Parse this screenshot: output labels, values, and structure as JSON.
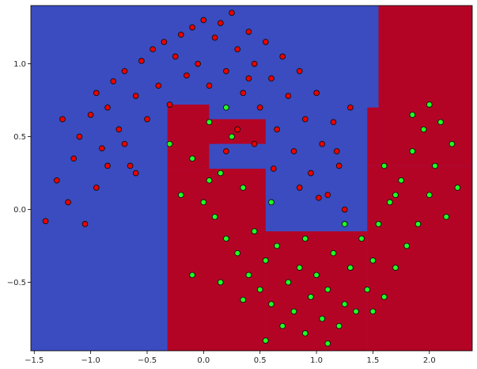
{
  "chart_data": {
    "type": "scatter",
    "title": "",
    "xlabel": "",
    "ylabel": "",
    "xlim": [
      -1.53,
      2.38
    ],
    "ylim": [
      -0.97,
      1.4
    ],
    "grid": false,
    "legend": "none",
    "x_ticks": [
      -1.5,
      -1.0,
      -0.5,
      0.0,
      0.5,
      1.0,
      1.5,
      2.0
    ],
    "x_tick_labels": [
      "−1.5",
      "−1.0",
      "−0.5",
      "0.0",
      "0.5",
      "1.0",
      "1.5",
      "2.0"
    ],
    "y_ticks": [
      -0.5,
      0.0,
      0.5,
      1.0
    ],
    "y_tick_labels": [
      "−0.5",
      "0.0",
      "0.5",
      "1.0"
    ],
    "background": "decision-surface",
    "colors": {
      "class_0_region": "#3b4cc0",
      "class_1_region": "#b40426",
      "class_0_points": "#ee0000",
      "class_1_points": "#22ff22"
    },
    "decision_regions": [
      {
        "class": 1,
        "x": [
          -0.32,
          0.55
        ],
        "y": [
          -0.97,
          0.28
        ]
      },
      {
        "class": 1,
        "x": [
          -0.32,
          0.05
        ],
        "y": [
          0.28,
          0.72
        ]
      },
      {
        "class": 1,
        "x": [
          0.05,
          0.55
        ],
        "y": [
          0.45,
          0.62
        ]
      },
      {
        "class": 1,
        "x": [
          0.55,
          1.45
        ],
        "y": [
          -0.97,
          -0.15
        ]
      },
      {
        "class": 1,
        "x": [
          1.45,
          2.38
        ],
        "y": [
          -0.97,
          0.3
        ]
      },
      {
        "class": 1,
        "x": [
          1.55,
          2.38
        ],
        "y": [
          0.3,
          1.4
        ]
      },
      {
        "class": 1,
        "x": [
          1.45,
          1.55
        ],
        "y": [
          0.3,
          0.7
        ]
      },
      {
        "class": 0,
        "x": [
          0.1,
          0.5
        ],
        "y": [
          0.28,
          0.45
        ]
      }
    ],
    "series": [
      {
        "class": 0,
        "points": [
          [
            -1.1,
            0.5
          ],
          [
            -1.0,
            0.65
          ],
          [
            -0.95,
            0.8
          ],
          [
            -0.9,
            0.42
          ],
          [
            -0.85,
            0.7
          ],
          [
            -0.8,
            0.88
          ],
          [
            -0.75,
            0.55
          ],
          [
            -0.7,
            0.95
          ],
          [
            -0.65,
            0.3
          ],
          [
            -0.6,
            0.78
          ],
          [
            -0.55,
            1.02
          ],
          [
            -0.5,
            0.62
          ],
          [
            -0.45,
            1.1
          ],
          [
            -0.4,
            0.85
          ],
          [
            -0.35,
            1.15
          ],
          [
            -0.3,
            0.72
          ],
          [
            -0.25,
            1.05
          ],
          [
            -0.2,
            1.2
          ],
          [
            -0.15,
            0.92
          ],
          [
            -0.1,
            1.25
          ],
          [
            -0.05,
            1.0
          ],
          [
            0.0,
            1.3
          ],
          [
            0.05,
            0.85
          ],
          [
            0.1,
            1.18
          ],
          [
            0.15,
            1.28
          ],
          [
            0.2,
            0.95
          ],
          [
            0.25,
            1.35
          ],
          [
            0.3,
            1.1
          ],
          [
            0.35,
            0.8
          ],
          [
            0.4,
            1.22
          ],
          [
            0.45,
            1.0
          ],
          [
            0.5,
            0.7
          ],
          [
            0.55,
            1.15
          ],
          [
            0.6,
            0.9
          ],
          [
            0.65,
            0.55
          ],
          [
            0.7,
            1.05
          ],
          [
            0.75,
            0.78
          ],
          [
            0.8,
            0.4
          ],
          [
            0.85,
            0.95
          ],
          [
            0.9,
            0.62
          ],
          [
            0.95,
            0.25
          ],
          [
            1.0,
            0.8
          ],
          [
            1.05,
            0.45
          ],
          [
            1.1,
            0.1
          ],
          [
            1.15,
            0.6
          ],
          [
            1.2,
            0.3
          ],
          [
            1.25,
            0.0
          ],
          [
            1.3,
            0.7
          ],
          [
            -1.3,
            0.2
          ],
          [
            -1.2,
            0.05
          ],
          [
            -1.15,
            0.35
          ],
          [
            -1.05,
            -0.1
          ],
          [
            -0.95,
            0.15
          ],
          [
            -1.4,
            -0.08
          ],
          [
            -0.85,
            0.3
          ],
          [
            -0.7,
            0.45
          ],
          [
            -0.6,
            0.25
          ],
          [
            -1.25,
            0.62
          ],
          [
            0.2,
            0.4
          ],
          [
            0.3,
            0.55
          ],
          [
            0.45,
            0.45
          ],
          [
            0.62,
            0.28
          ],
          [
            0.85,
            0.15
          ],
          [
            1.02,
            0.08
          ],
          [
            1.18,
            0.4
          ],
          [
            0.4,
            0.9
          ]
        ]
      },
      {
        "class": 1,
        "points": [
          [
            -0.3,
            0.45
          ],
          [
            -0.2,
            0.1
          ],
          [
            -0.1,
            0.35
          ],
          [
            0.0,
            0.05
          ],
          [
            0.05,
            0.6
          ],
          [
            0.1,
            -0.05
          ],
          [
            0.15,
            0.25
          ],
          [
            0.2,
            -0.2
          ],
          [
            0.25,
            0.5
          ],
          [
            0.3,
            -0.3
          ],
          [
            0.35,
            0.15
          ],
          [
            0.4,
            -0.45
          ],
          [
            0.45,
            -0.15
          ],
          [
            0.5,
            -0.55
          ],
          [
            0.55,
            -0.35
          ],
          [
            0.6,
            -0.65
          ],
          [
            0.65,
            -0.25
          ],
          [
            0.7,
            -0.8
          ],
          [
            0.75,
            -0.5
          ],
          [
            0.8,
            -0.7
          ],
          [
            0.85,
            -0.4
          ],
          [
            0.9,
            -0.85
          ],
          [
            0.95,
            -0.6
          ],
          [
            1.0,
            -0.45
          ],
          [
            1.05,
            -0.75
          ],
          [
            1.1,
            -0.55
          ],
          [
            1.15,
            -0.3
          ],
          [
            1.2,
            -0.8
          ],
          [
            1.25,
            -0.65
          ],
          [
            1.3,
            -0.4
          ],
          [
            1.35,
            -0.7
          ],
          [
            1.4,
            -0.2
          ],
          [
            1.45,
            -0.55
          ],
          [
            1.5,
            -0.35
          ],
          [
            1.55,
            -0.1
          ],
          [
            1.6,
            -0.6
          ],
          [
            1.65,
            0.05
          ],
          [
            1.7,
            -0.4
          ],
          [
            1.75,
            0.2
          ],
          [
            1.8,
            -0.25
          ],
          [
            1.85,
            0.4
          ],
          [
            1.9,
            -0.1
          ],
          [
            1.95,
            0.55
          ],
          [
            2.0,
            0.1
          ],
          [
            2.05,
            0.3
          ],
          [
            2.1,
            0.6
          ],
          [
            2.15,
            -0.05
          ],
          [
            2.2,
            0.45
          ],
          [
            2.25,
            0.15
          ],
          [
            2.0,
            0.72
          ],
          [
            1.85,
            0.65
          ],
          [
            1.7,
            0.1
          ],
          [
            1.6,
            0.3
          ],
          [
            0.05,
            0.2
          ],
          [
            0.6,
            0.05
          ],
          [
            0.9,
            -0.2
          ],
          [
            1.25,
            -0.1
          ],
          [
            0.15,
            -0.5
          ],
          [
            -0.1,
            -0.45
          ],
          [
            0.35,
            -0.62
          ],
          [
            0.55,
            -0.9
          ],
          [
            1.1,
            -0.92
          ],
          [
            1.5,
            -0.7
          ],
          [
            0.2,
            0.7
          ]
        ]
      }
    ]
  }
}
